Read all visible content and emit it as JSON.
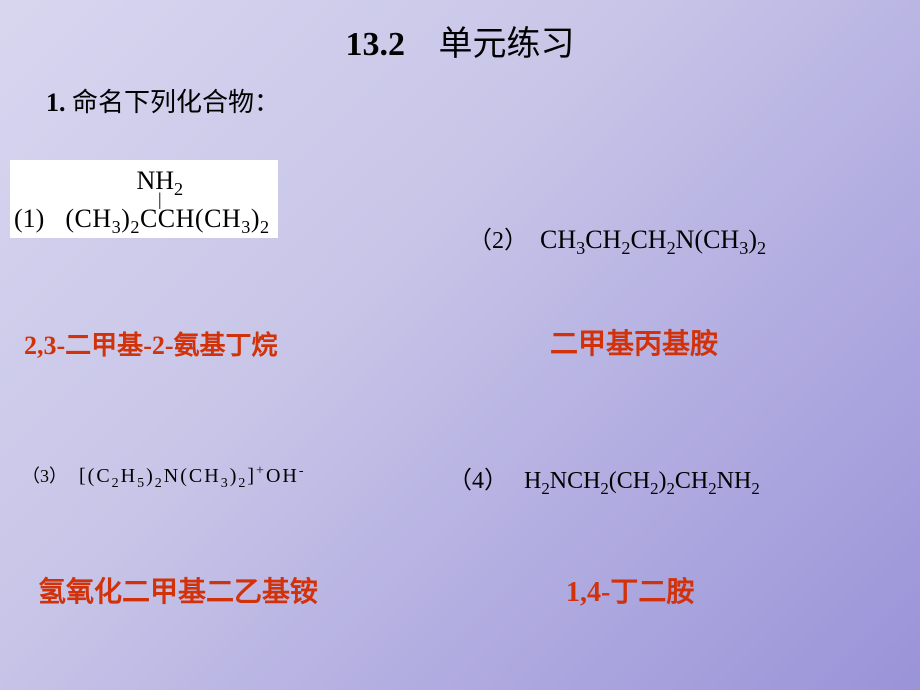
{
  "title": {
    "section_no": "13.2",
    "text": "单元练习",
    "fontsize": 34
  },
  "prompt": {
    "number": "1.",
    "text": "命名下列化合物：",
    "fontsize": 26
  },
  "items": [
    {
      "label": "(1)",
      "formula_html": "(CH<sub>3</sub>)<sub>2</sub>CCH(CH<sub>3</sub>)<sub>2</sub>",
      "top_group_html": "NH<sub>2</sub>",
      "formula_fontsize": 26,
      "answer": "2,3-二甲基-2-氨基丁烷",
      "answer_fontsize": 26,
      "boxed": true
    },
    {
      "label": "（2）",
      "formula_html": "CH<sub>3</sub>CH<sub>2</sub>CH<sub>2</sub>N(CH<sub>3</sub>)<sub>2</sub>",
      "formula_fontsize": 26,
      "answer": "二甲基丙基胺",
      "answer_fontsize": 28
    },
    {
      "label": "（3）",
      "formula_html": "[(C<sub>2</sub>H<sub>5</sub>)<sub>2</sub>N(CH<sub>3</sub>)<sub>2</sub>]<sup>+</sup>OH<sup>-</sup>",
      "formula_fontsize": 20,
      "label_fontsize": 18,
      "answer": "氢氧化二甲基二乙基铵",
      "answer_fontsize": 28
    },
    {
      "label": "（4）",
      "formula_html": "H<sub>2</sub>NCH<sub>2</sub>(CH<sub>2</sub>)<sub>2</sub>CH<sub>2</sub>NH<sub>2</sub>",
      "formula_fontsize": 24,
      "answer": "1,4-丁二胺",
      "answer_fontsize": 28
    }
  ],
  "colors": {
    "answer": "#d2320a",
    "text": "#000000",
    "box_bg": "#ffffff"
  }
}
